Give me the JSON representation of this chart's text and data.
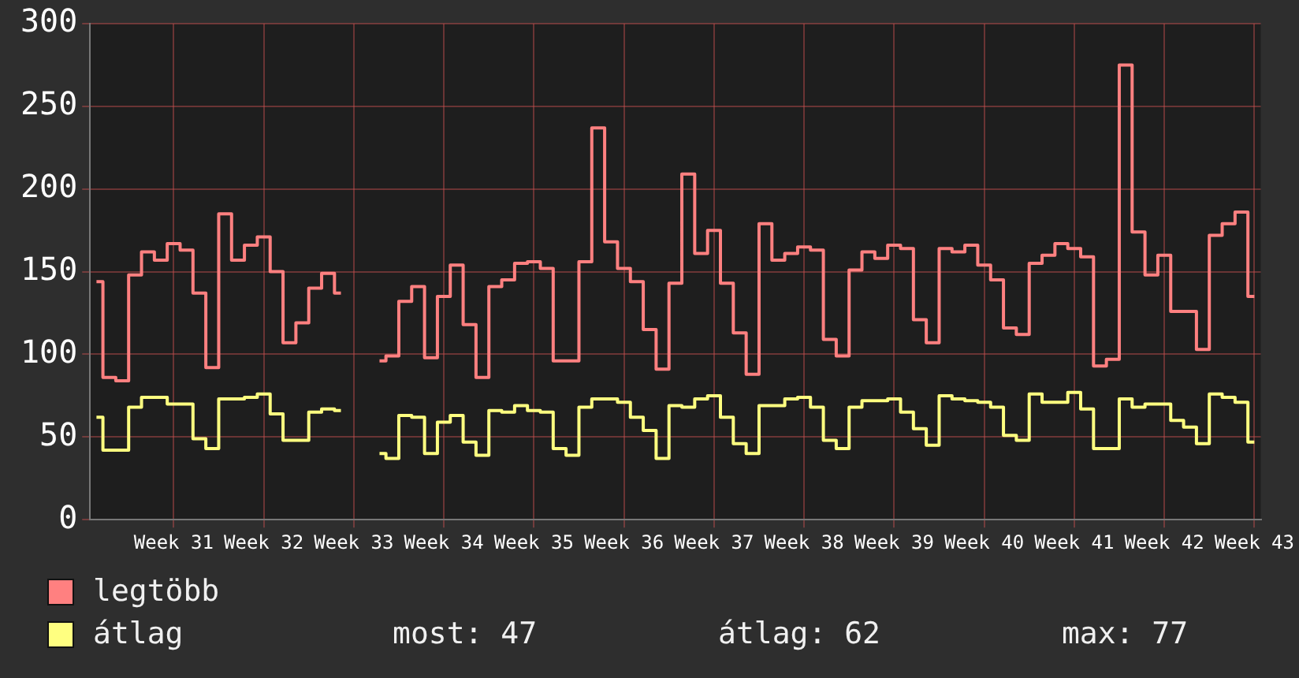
{
  "chart_data": {
    "type": "step",
    "categories": [
      null,
      null,
      null,
      null,
      null,
      null,
      "Week 31",
      null,
      null,
      null,
      null,
      null,
      null,
      "Week 32",
      null,
      null,
      null,
      null,
      null,
      null,
      "Week 33",
      null,
      null,
      null,
      null,
      null,
      null,
      "Week 34",
      null,
      null,
      null,
      null,
      null,
      null,
      "Week 35",
      null,
      null,
      null,
      null,
      null,
      null,
      "Week 36",
      null,
      null,
      null,
      null,
      null,
      null,
      "Week 37",
      null,
      null,
      null,
      null,
      null,
      null,
      "Week 38",
      null,
      null,
      null,
      null,
      null,
      null,
      "Week 39",
      null,
      null,
      null,
      null,
      null,
      null,
      "Week 40",
      null,
      null,
      null,
      null,
      null,
      null,
      "Week 41",
      null,
      null,
      null,
      null,
      null,
      null,
      "Week 42",
      null,
      null,
      null,
      null,
      null,
      null,
      "Week 43"
    ],
    "series": [
      {
        "name": "legtöbb",
        "color": "#ff8080",
        "values": [
          144,
          86,
          84,
          148,
          162,
          157,
          167,
          163,
          137,
          92,
          185,
          157,
          166,
          171,
          150,
          107,
          119,
          140,
          149,
          137,
          null,
          null,
          96,
          99,
          132,
          141,
          98,
          135,
          154,
          118,
          86,
          141,
          145,
          155,
          156,
          152,
          96,
          96,
          156,
          237,
          168,
          152,
          144,
          115,
          91,
          143,
          209,
          161,
          175,
          143,
          113,
          88,
          179,
          157,
          161,
          165,
          163,
          109,
          99,
          151,
          162,
          158,
          166,
          164,
          121,
          107,
          164,
          162,
          166,
          154,
          145,
          116,
          112,
          155,
          160,
          167,
          164,
          159,
          93,
          97,
          275,
          174,
          148,
          160,
          126,
          126,
          103,
          172,
          179,
          186,
          135
        ]
      },
      {
        "name": "átlag",
        "color": "#ffff80",
        "values": [
          62,
          42,
          42,
          68,
          74,
          74,
          70,
          70,
          49,
          43,
          73,
          73,
          74,
          76,
          64,
          48,
          48,
          65,
          67,
          66,
          null,
          null,
          40,
          37,
          63,
          62,
          40,
          59,
          63,
          47,
          39,
          66,
          65,
          69,
          66,
          65,
          43,
          39,
          68,
          73,
          73,
          71,
          62,
          54,
          37,
          69,
          68,
          73,
          75,
          62,
          46,
          40,
          69,
          69,
          73,
          74,
          68,
          48,
          43,
          68,
          72,
          72,
          73,
          65,
          55,
          45,
          75,
          73,
          72,
          71,
          68,
          51,
          48,
          76,
          71,
          71,
          77,
          67,
          43,
          43,
          73,
          68,
          70,
          70,
          60,
          56,
          46,
          76,
          74,
          71,
          47
        ]
      }
    ],
    "ylim": [
      0,
      300
    ],
    "yticks": [
      0,
      50,
      100,
      150,
      200,
      250,
      300
    ],
    "grid": true,
    "legend": "bottom left",
    "annotations": [
      "most: 47",
      "átlag: 62",
      "max: 77"
    ]
  }
}
